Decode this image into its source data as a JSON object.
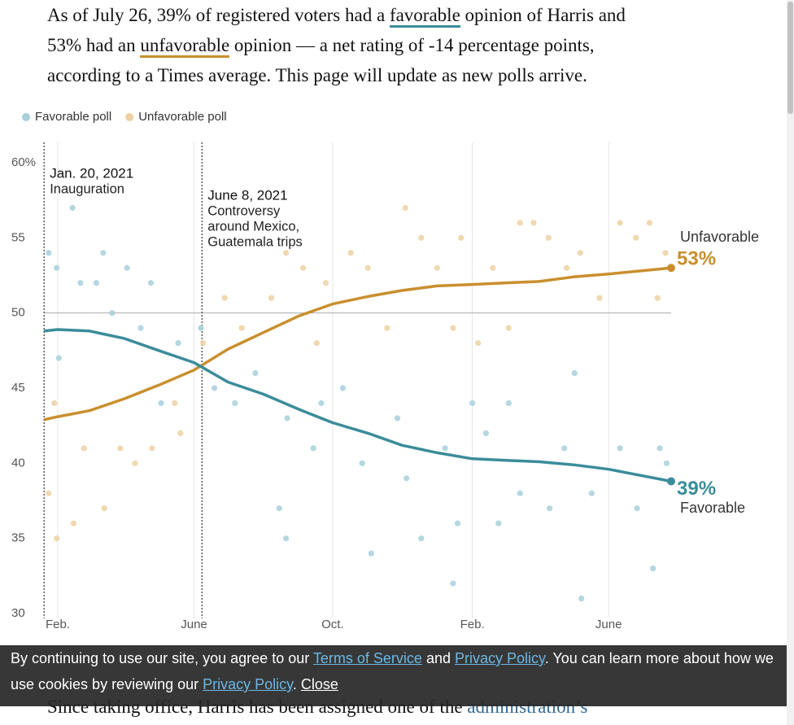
{
  "intro": [
    [
      "As of July 26, 39% of registered voters had a ",
      "favorable",
      " opinion of Harris and"
    ],
    [
      "53% had an ",
      "unfavorable",
      " opinion — a net rating of -14 percentage points,"
    ],
    [
      "according to a Times average. This page will update as new polls arrive."
    ]
  ],
  "chart_data": {
    "type": "scatter",
    "xlim": [
      "2021-01-17",
      "2022-07-26"
    ],
    "xticks": [
      {
        "value": "2021-02-01",
        "label": "Feb."
      },
      {
        "value": "2021-06-01",
        "label": "June"
      },
      {
        "value": "2021-10-01",
        "label": "Oct."
      },
      {
        "value": "2022-02-01",
        "label": "Feb."
      },
      {
        "value": "2022-06-01",
        "label": "June"
      }
    ],
    "ylim": [
      30,
      60
    ],
    "yticks": [
      30,
      35,
      40,
      45,
      50,
      55,
      {
        "value": 60,
        "label": "60%"
      }
    ],
    "reference_line": 50,
    "grid": "x",
    "legend": "top-left",
    "annotations": [
      {
        "x": "2021-01-20",
        "date": "Jan. 20, 2021",
        "lines": [
          "Inauguration"
        ]
      },
      {
        "x": "2021-06-08",
        "date": "June 8, 2021",
        "lines": [
          "Controversy",
          "around Mexico,",
          "Guatemala trips"
        ]
      }
    ],
    "series": [
      {
        "name": "Favorable poll",
        "kind": "scatter",
        "color": "#a7d0da",
        "x": [
          "2021-01-24",
          "2021-01-31",
          "2021-02-02",
          "2021-02-14",
          "2021-02-21",
          "2021-03-07",
          "2021-03-13",
          "2021-03-21",
          "2021-04-03",
          "2021-04-15",
          "2021-04-24",
          "2021-05-03",
          "2021-05-18",
          "2021-06-07",
          "2021-06-19",
          "2021-07-07",
          "2021-07-25",
          "2021-08-15",
          "2021-08-21",
          "2021-08-22",
          "2021-09-14",
          "2021-09-21",
          "2021-10-10",
          "2021-10-27",
          "2021-11-04",
          "2021-11-27",
          "2021-12-05",
          "2021-12-18",
          "2022-01-08",
          "2022-01-15",
          "2022-01-19",
          "2022-02-01",
          "2022-02-13",
          "2022-02-24",
          "2022-03-05",
          "2022-03-15",
          "2022-04-10",
          "2022-04-23",
          "2022-05-02",
          "2022-05-08",
          "2022-05-17",
          "2022-06-11",
          "2022-06-26",
          "2022-07-10",
          "2022-07-16",
          "2022-07-22"
        ],
        "values": [
          54,
          53,
          47,
          57,
          52,
          52,
          54,
          50,
          53,
          49,
          52,
          44,
          48,
          49,
          45,
          44,
          46,
          37,
          35,
          43,
          41,
          44,
          45,
          40,
          34,
          43,
          39,
          35,
          41,
          32,
          36,
          44,
          42,
          36,
          44,
          38,
          37,
          41,
          46,
          31,
          38,
          41,
          37,
          33,
          41,
          40
        ]
      },
      {
        "name": "Unfavorable poll",
        "kind": "scatter",
        "color": "#edd1a2",
        "x": [
          "2021-01-24",
          "2021-01-31",
          "2021-01-29",
          "2021-02-15",
          "2021-02-24",
          "2021-03-14",
          "2021-03-28",
          "2021-04-10",
          "2021-04-25",
          "2021-05-15",
          "2021-05-20",
          "2021-06-09",
          "2021-06-28",
          "2021-07-13",
          "2021-08-08",
          "2021-08-21",
          "2021-09-05",
          "2021-09-17",
          "2021-09-25",
          "2021-10-17",
          "2021-11-01",
          "2021-11-18",
          "2021-12-04",
          "2021-12-18",
          "2022-01-01",
          "2022-01-15",
          "2022-01-22",
          "2022-02-06",
          "2022-02-19",
          "2022-03-05",
          "2022-03-15",
          "2022-03-27",
          "2022-04-09",
          "2022-04-25",
          "2022-05-07",
          "2022-05-24",
          "2022-06-11",
          "2022-06-25",
          "2022-07-07",
          "2022-07-14",
          "2022-07-21"
        ],
        "values": [
          38,
          35,
          44,
          36,
          41,
          37,
          41,
          40,
          41,
          44,
          42,
          48,
          51,
          49,
          51,
          54,
          53,
          48,
          52,
          54,
          53,
          49,
          57,
          55,
          53,
          49,
          55,
          48,
          53,
          49,
          56,
          56,
          55,
          53,
          54,
          51,
          56,
          55,
          56,
          51,
          54
        ]
      },
      {
        "name": "Unfavorable",
        "kind": "line",
        "color": "#c98f2e",
        "x": [
          "2021-01-20",
          "2021-02-01",
          "2021-03-01",
          "2021-04-01",
          "2021-05-01",
          "2021-06-01",
          "2021-07-01",
          "2021-08-01",
          "2021-09-01",
          "2021-10-01",
          "2021-11-01",
          "2021-12-01",
          "2022-01-01",
          "2022-02-01",
          "2022-03-01",
          "2022-04-01",
          "2022-05-01",
          "2022-06-01",
          "2022-07-26"
        ],
        "values": [
          42.9,
          43.1,
          43.5,
          44.3,
          45.2,
          46.2,
          47.6,
          48.7,
          49.8,
          50.6,
          51.1,
          51.5,
          51.8,
          51.9,
          52.0,
          52.1,
          52.4,
          52.6,
          53.0
        ],
        "value_labels": [
          null,
          null,
          null,
          null,
          null,
          null,
          null,
          null,
          null,
          null,
          null,
          null,
          null,
          null,
          null,
          null,
          null,
          null,
          "53%"
        ]
      },
      {
        "name": "Favorable",
        "kind": "line",
        "color": "#3b8c9a",
        "x": [
          "2021-01-20",
          "2021-02-01",
          "2021-03-01",
          "2021-04-01",
          "2021-05-01",
          "2021-06-01",
          "2021-07-01",
          "2021-08-01",
          "2021-09-01",
          "2021-10-01",
          "2021-11-01",
          "2021-12-01",
          "2022-01-01",
          "2022-02-01",
          "2022-03-01",
          "2022-04-01",
          "2022-05-01",
          "2022-06-01",
          "2022-07-26"
        ],
        "values": [
          48.8,
          48.9,
          48.8,
          48.3,
          47.5,
          46.7,
          45.4,
          44.6,
          43.6,
          42.7,
          42.0,
          41.2,
          40.7,
          40.3,
          40.2,
          40.1,
          39.9,
          39.6,
          38.8
        ],
        "value_labels": [
          null,
          null,
          null,
          null,
          null,
          null,
          null,
          null,
          null,
          null,
          null,
          null,
          null,
          null,
          null,
          null,
          null,
          null,
          "39%"
        ]
      }
    ]
  },
  "below": [
    "Since taking office, Harris has been assigned one of the ",
    "administration’s"
  ],
  "cookie": {
    "line1": [
      "By continuing to use our site, you agree to our ",
      "Terms of Service",
      " and ",
      "Privacy Policy",
      ". You can learn more about how we"
    ],
    "line2": [
      "use cookies by reviewing our ",
      "Privacy Policy",
      ". ",
      "Close"
    ]
  }
}
